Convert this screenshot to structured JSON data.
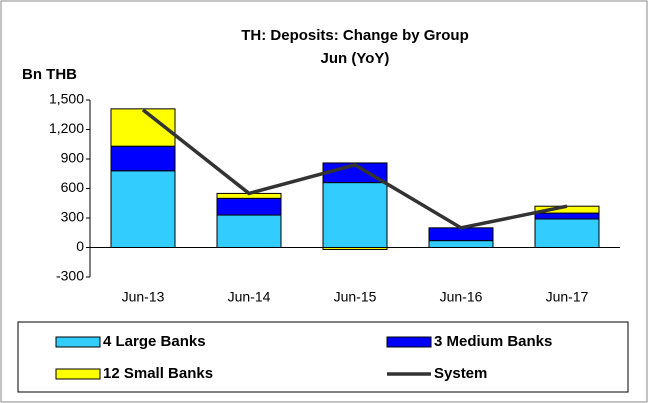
{
  "chart_data": {
    "type": "bar",
    "stacked": true,
    "title": "TH: Deposits: Change by Group",
    "subtitle": "Jun (YoY)",
    "y_label": "Bn THB",
    "categories": [
      "Jun-13",
      "Jun-14",
      "Jun-15",
      "Jun-16",
      "Jun-17"
    ],
    "series": [
      {
        "name": "4 Large Banks",
        "color": "#33ccff",
        "values": [
          780,
          330,
          660,
          70,
          290
        ]
      },
      {
        "name": "3 Medium Banks",
        "color": "#0000ff",
        "values": [
          250,
          170,
          200,
          130,
          60
        ]
      },
      {
        "name": "12 Small Banks",
        "color": "#ffff00",
        "values": [
          380,
          50,
          -20,
          0,
          70
        ]
      },
      {
        "name": "System",
        "type": "line",
        "color": "#333333",
        "values": [
          1400,
          550,
          840,
          200,
          420
        ]
      }
    ],
    "ylim": [
      -300,
      1500
    ],
    "yticks": [
      -300,
      0,
      300,
      600,
      900,
      {
        "value": 1200,
        "label": "1,200"
      },
      {
        "value": 1500,
        "label": "1,500"
      }
    ],
    "legend": "bottom"
  }
}
